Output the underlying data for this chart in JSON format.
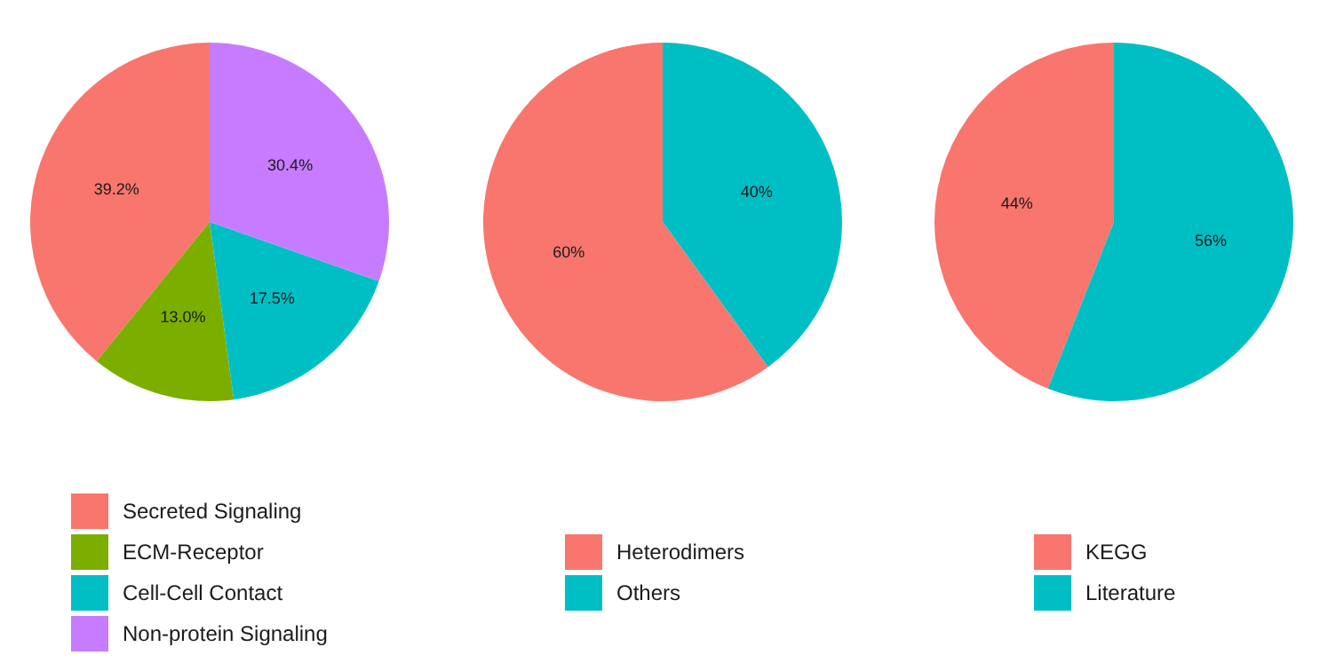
{
  "chart_data": [
    {
      "type": "pie",
      "categories": [
        "Secreted Signaling",
        "ECM-Receptor",
        "Cell-Cell Contact",
        "Non-protein Signaling"
      ],
      "values": [
        39.2,
        13.0,
        17.5,
        30.4
      ],
      "colors": [
        "#f8766d",
        "#7cae00",
        "#00bfc4",
        "#c77cff"
      ],
      "value_labels": [
        "39.2%",
        "13.0%",
        "17.5%",
        "30.4%"
      ],
      "legend": "bottom"
    },
    {
      "type": "pie",
      "categories": [
        "Heterodimers",
        "Others"
      ],
      "values": [
        60,
        40
      ],
      "colors": [
        "#f8766d",
        "#00bfc4"
      ],
      "value_labels": [
        "60%",
        "40%"
      ],
      "legend": "bottom"
    },
    {
      "type": "pie",
      "categories": [
        "KEGG",
        "Literature"
      ],
      "values": [
        44,
        56
      ],
      "colors": [
        "#f8766d",
        "#00bfc4"
      ],
      "value_labels": [
        "44%",
        "56%"
      ],
      "legend": "bottom"
    }
  ]
}
